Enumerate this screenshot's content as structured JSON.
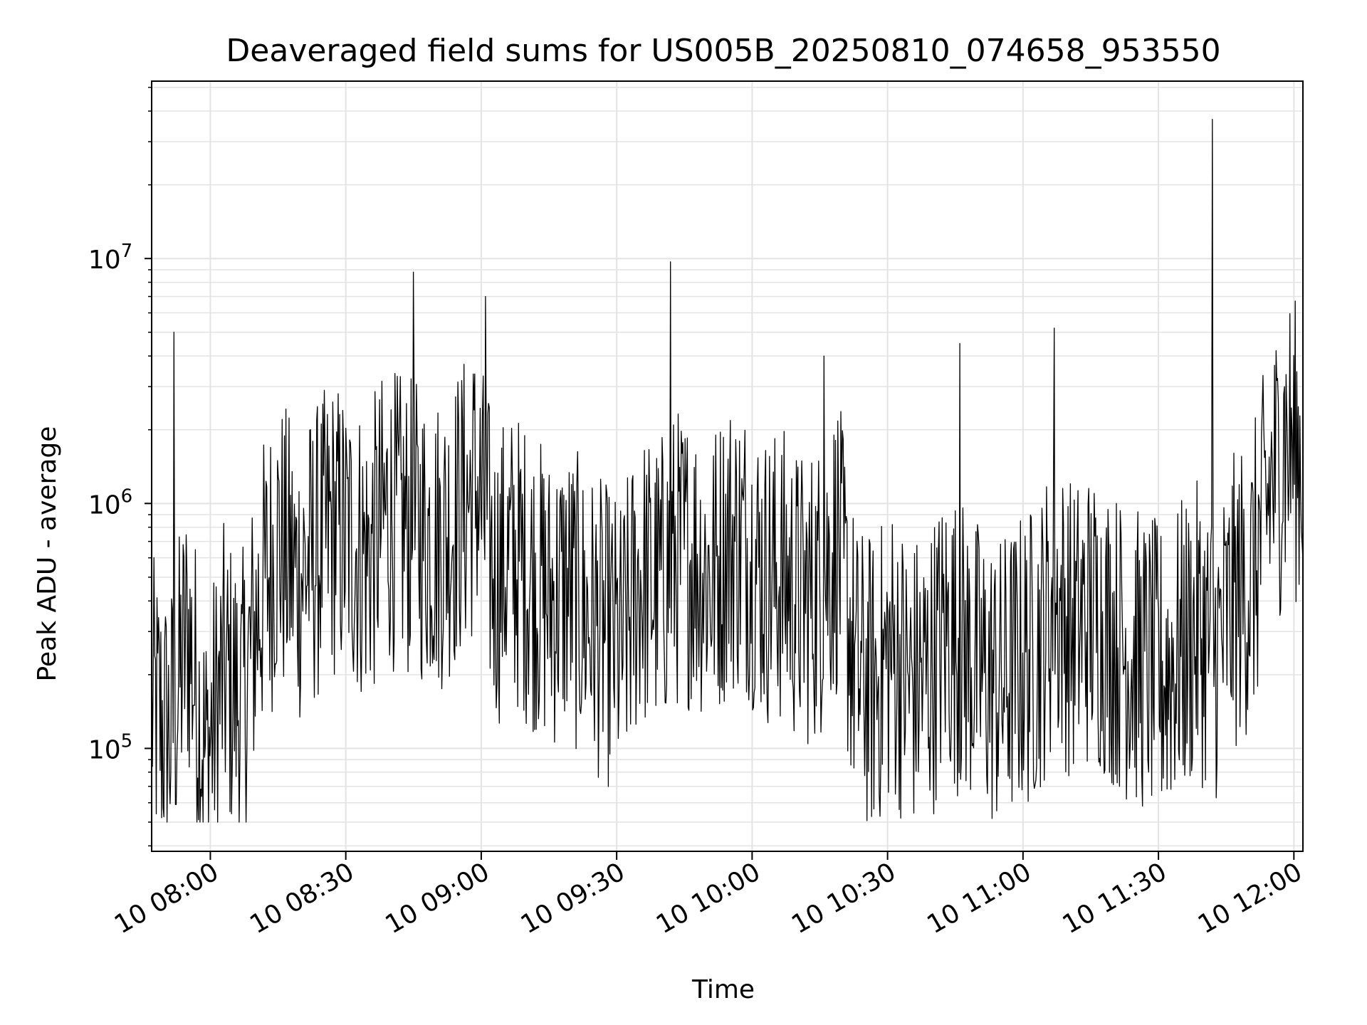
{
  "chart_data": {
    "type": "line",
    "title": "Deaveraged field sums for US005B_20250810_074658_953550",
    "xlabel": "Time",
    "ylabel": "Peak ADU - average",
    "yscale": "log",
    "ylim": [
      38000,
      53000000
    ],
    "xlim": [
      "2025-08-10 07:47",
      "2025-08-10 12:02"
    ],
    "grid": true,
    "line_color": "#000000",
    "x_tick_labels": [
      "10 08:00",
      "10 08:30",
      "10 09:00",
      "10 09:30",
      "10 10:00",
      "10 10:30",
      "10 11:00",
      "10 11:30",
      "10 12:00"
    ],
    "y_major_ticks": [
      {
        "base": "10",
        "exp": "5"
      },
      {
        "base": "10",
        "exp": "6"
      },
      {
        "base": "10",
        "exp": "7"
      }
    ],
    "series": [
      {
        "x": [
          "2025-08-10 07:47",
          "2025-08-10 07:51",
          "2025-08-10 07:55",
          "2025-08-10 07:59",
          "2025-08-10 08:03",
          "2025-08-10 08:07",
          "2025-08-10 08:11",
          "2025-08-10 08:15",
          "2025-08-10 08:19",
          "2025-08-10 08:23",
          "2025-08-10 08:27",
          "2025-08-10 08:31",
          "2025-08-10 08:35",
          "2025-08-10 08:39",
          "2025-08-10 08:43",
          "2025-08-10 08:47",
          "2025-08-10 08:51",
          "2025-08-10 08:55",
          "2025-08-10 08:59",
          "2025-08-10 09:03",
          "2025-08-10 09:07",
          "2025-08-10 09:11",
          "2025-08-10 09:15",
          "2025-08-10 09:19",
          "2025-08-10 09:23",
          "2025-08-10 09:27",
          "2025-08-10 09:31",
          "2025-08-10 09:35",
          "2025-08-10 09:39",
          "2025-08-10 09:43",
          "2025-08-10 09:47",
          "2025-08-10 09:51",
          "2025-08-10 09:55",
          "2025-08-10 09:59",
          "2025-08-10 10:03",
          "2025-08-10 10:07",
          "2025-08-10 10:11",
          "2025-08-10 10:15",
          "2025-08-10 10:19",
          "2025-08-10 10:23",
          "2025-08-10 10:27",
          "2025-08-10 10:31",
          "2025-08-10 10:35",
          "2025-08-10 10:39",
          "2025-08-10 10:43",
          "2025-08-10 10:47",
          "2025-08-10 10:51",
          "2025-08-10 10:55",
          "2025-08-10 10:59",
          "2025-08-10 11:03",
          "2025-08-10 11:07",
          "2025-08-10 11:11",
          "2025-08-10 11:15",
          "2025-08-10 11:19",
          "2025-08-10 11:23",
          "2025-08-10 11:27",
          "2025-08-10 11:31",
          "2025-08-10 11:35",
          "2025-08-10 11:39",
          "2025-08-10 11:43",
          "2025-08-10 11:47",
          "2025-08-10 11:51",
          "2025-08-10 11:55",
          "2025-08-10 11:59",
          "2025-08-10 12:02"
        ],
        "values": [
          150000,
          110000,
          300000,
          90000,
          200000,
          150000,
          400000,
          700000,
          500000,
          600000,
          800000,
          700000,
          600000,
          900000,
          800000,
          750000,
          700000,
          900000,
          1200000,
          500000,
          600000,
          500000,
          400000,
          450000,
          350000,
          300000,
          250000,
          500000,
          450000,
          600000,
          600000,
          500000,
          700000,
          650000,
          500000,
          500000,
          400000,
          450000,
          700000,
          200000,
          180000,
          250000,
          180000,
          200000,
          300000,
          250000,
          200000,
          180000,
          220000,
          250000,
          400000,
          300000,
          350000,
          300000,
          250000,
          220000,
          200000,
          250000,
          300000,
          250000,
          400000,
          500000,
          1200000,
          1800000,
          1500000
        ]
      }
    ],
    "spikes": [
      {
        "x": "2025-08-10 07:52",
        "y": 5000000
      },
      {
        "x": "2025-08-10 08:45",
        "y": 8800000
      },
      {
        "x": "2025-08-10 09:01",
        "y": 7000000
      },
      {
        "x": "2025-08-10 09:42",
        "y": 9700000
      },
      {
        "x": "2025-08-10 10:16",
        "y": 4000000
      },
      {
        "x": "2025-08-10 10:46",
        "y": 4500000
      },
      {
        "x": "2025-08-10 11:07",
        "y": 5200000
      },
      {
        "x": "2025-08-10 11:42",
        "y": 37000000
      },
      {
        "x": "2025-08-10 11:58",
        "y": 3000000
      }
    ]
  }
}
